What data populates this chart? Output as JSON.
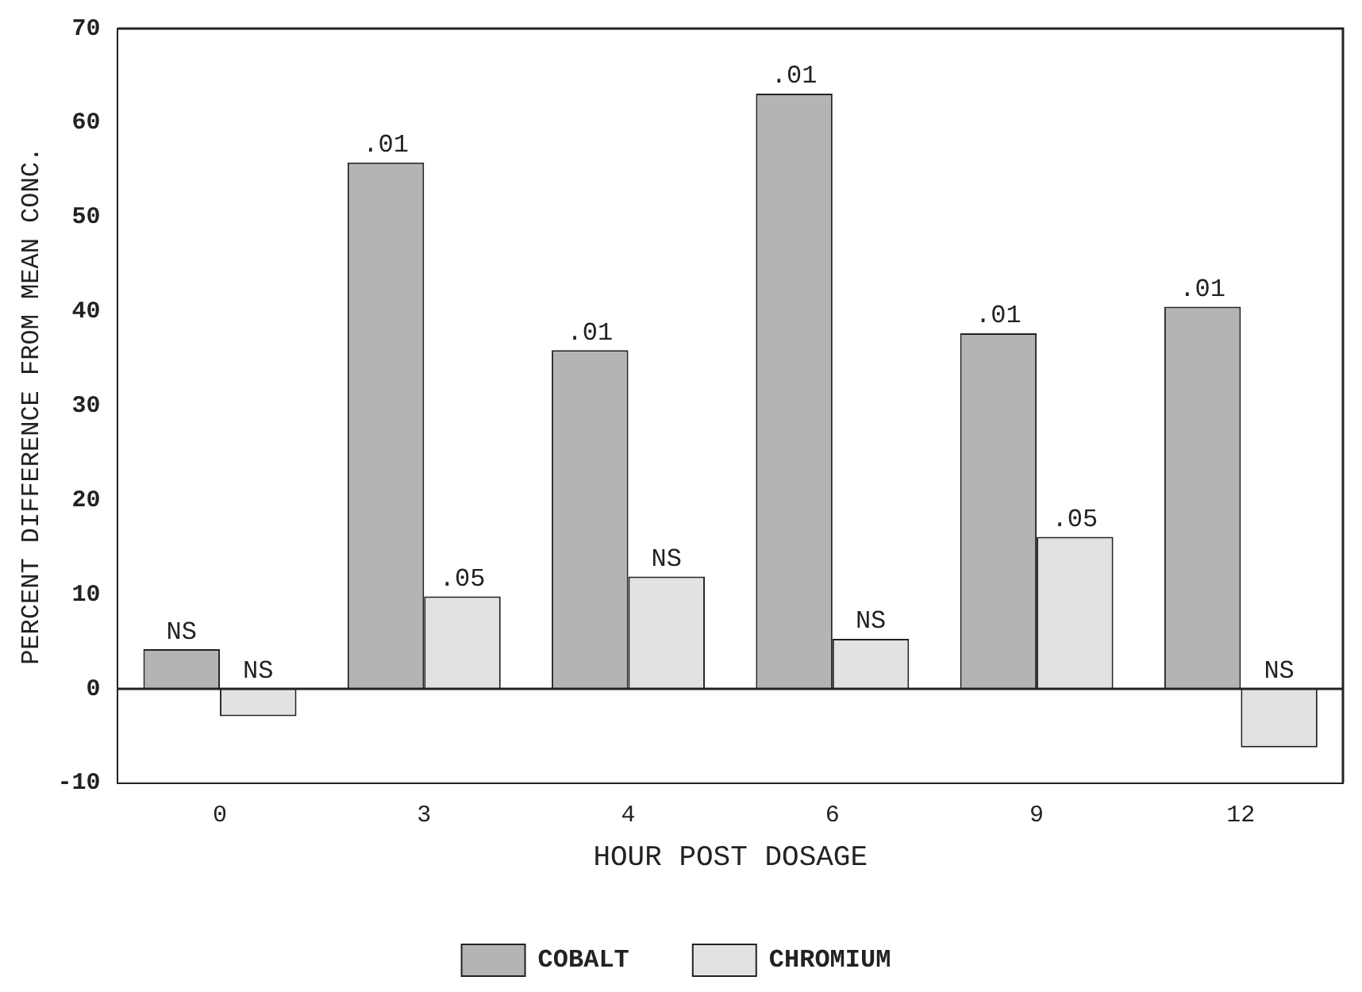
{
  "chart_data": {
    "type": "bar",
    "xlabel": "HOUR POST DOSAGE",
    "ylabel": "PERCENT DIFFERENCE FROM MEAN CONC.",
    "categories": [
      "0",
      "3",
      "4",
      "6",
      "9",
      "12"
    ],
    "series": [
      {
        "name": "COBALT",
        "color": "#b4b4b4",
        "values": [
          4.2,
          55.8,
          35.9,
          63.1,
          37.7,
          40.5
        ]
      },
      {
        "name": "CHROMIUM",
        "color": "#e2e2e2",
        "values": [
          -2.9,
          9.8,
          11.9,
          5.3,
          16.1,
          -6.2
        ]
      }
    ],
    "annotations": [
      {
        "text": "NS",
        "x": "0",
        "y": 4.2
      },
      {
        "text": ".01",
        "x": "3",
        "y": 55.8
      },
      {
        "text": ".01",
        "x": "4",
        "y": 35.9
      },
      {
        "text": ".01",
        "x": "6",
        "y": 63.1
      },
      {
        "text": ".01",
        "x": "9",
        "y": 37.7
      },
      {
        "text": ".01",
        "x": "12",
        "y": 40.5
      },
      {
        "text": "NS",
        "x": "0",
        "y": -2.9
      },
      {
        "text": ".05",
        "x": "3",
        "y": 9.8
      },
      {
        "text": "NS",
        "x": "4",
        "y": 11.9
      },
      {
        "text": "NS",
        "x": "6",
        "y": 5.3
      },
      {
        "text": ".05",
        "x": "9",
        "y": 16.1
      },
      {
        "text": "NS",
        "x": "12",
        "y": -6.2
      }
    ],
    "ref_lines": [
      {
        "axis": "y",
        "value": 0
      }
    ],
    "ylim": [
      -10,
      70
    ],
    "yticks": [
      -10,
      0,
      10,
      20,
      30,
      40,
      50,
      60,
      70
    ],
    "grid": false,
    "legend": "bottom"
  }
}
